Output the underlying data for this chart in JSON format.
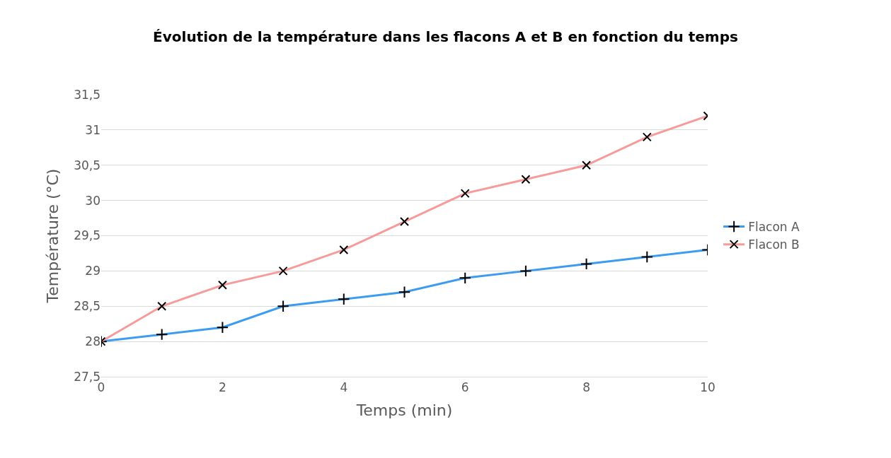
{
  "chart_data": {
    "type": "line",
    "title": "Évolution de la température dans les flacons A et B en fonction du temps",
    "xlabel": "Temps (min)",
    "ylabel": "Température (°C)",
    "x": [
      0,
      1,
      2,
      3,
      4,
      5,
      6,
      7,
      8,
      9,
      10
    ],
    "series": [
      {
        "name": "Flacon A",
        "color": "#3d9bf0",
        "marker": "cross",
        "values": [
          28,
          28.1,
          28.2,
          28.5,
          28.6,
          28.7,
          28.9,
          29.0,
          29.1,
          29.2,
          29.3
        ]
      },
      {
        "name": "Flacon B",
        "color": "#f79a9a",
        "marker": "x",
        "values": [
          28,
          28.5,
          28.8,
          29.0,
          29.3,
          29.7,
          30.1,
          30.3,
          30.5,
          30.9,
          31.2
        ]
      }
    ],
    "xlim": [
      0,
      10
    ],
    "xticks": [
      0,
      2,
      4,
      6,
      8,
      10
    ],
    "ylim": [
      27.5,
      31.5
    ],
    "yticks": [
      {
        "value": 27.5,
        "label": "27,5"
      },
      {
        "value": 28,
        "label": "28"
      },
      {
        "value": 28.5,
        "label": "28,5"
      },
      {
        "value": 29,
        "label": "29"
      },
      {
        "value": 29.5,
        "label": "29,5"
      },
      {
        "value": 30,
        "label": "30"
      },
      {
        "value": 30.5,
        "label": "30,5"
      },
      {
        "value": 31,
        "label": "31"
      },
      {
        "value": 31.5,
        "label": "31,5"
      }
    ],
    "grid": "y",
    "legend": "right",
    "line_style": "solid"
  }
}
